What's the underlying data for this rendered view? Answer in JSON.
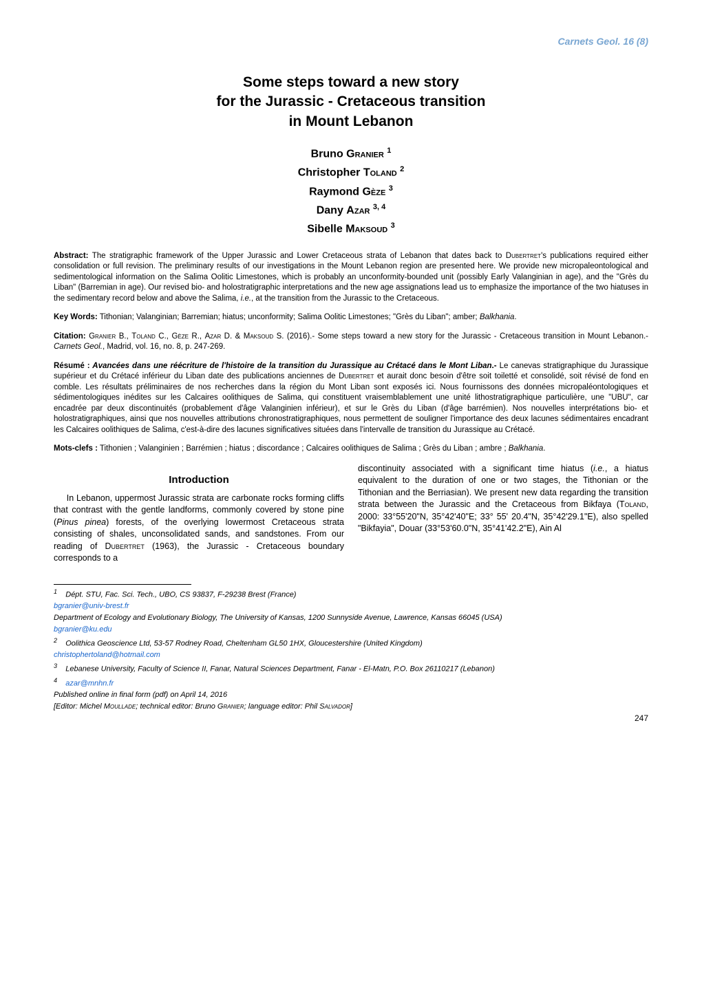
{
  "running_header": {
    "journal": "Carnets Geol.",
    "vol_issue": "16 (8)"
  },
  "title_lines": [
    "Some steps toward a new story",
    "for the Jurassic - Cretaceous transition",
    "in Mount Lebanon"
  ],
  "authors": [
    {
      "given": "Bruno",
      "surname": "Granier",
      "sup": "1"
    },
    {
      "given": "Christopher",
      "surname": "Toland",
      "sup": "2"
    },
    {
      "given": "Raymond",
      "surname": "Gèze",
      "sup": "3"
    },
    {
      "given": "Dany",
      "surname": "Azar",
      "sup": "3, 4"
    },
    {
      "given": "Sibelle",
      "surname": "Maksoud",
      "sup": "3"
    }
  ],
  "abstract": {
    "label": "Abstract:",
    "prefix": " The stratigraphic framework of the Upper Jurassic and Lower Cretaceous strata of Lebanon that dates back to ",
    "sc1": "Dubertret",
    "mid": "'s publications required either consolidation or full revision. The preliminary results of our investigations in the Mount Lebanon region are presented here. We provide new micropaleontological and sedimentological information on the Salima Oolitic Limestones, which is probably an unconformity-bounded unit (possibly Early Valanginian in age), and the \"Grès du Liban\" (Barremian in age). Our revised bio- and holostratigraphic interpretations and the new age assignations lead us to emphasize the importance of the two hiatuses in the sedimentary record below and above the Salima, ",
    "ie": "i.e.",
    "suffix": ", at the transition from the Jurassic to the Cretaceous."
  },
  "keywords": {
    "label": "Key Words:",
    "prefix": " Tithonian; Valanginian; Barremian; hiatus; unconformity; Salima Oolitic Limestones; \"Grès du Liban\"; amber; ",
    "ital": "Balkhania",
    "suffix": "."
  },
  "citation": {
    "label": "Citation:",
    "prefix": " ",
    "sc1": "Granier",
    "t1": " B., ",
    "sc2": "Toland",
    "t2": " C., ",
    "sc3": "Gèze",
    "t3": " R., ",
    "sc4": "Azar",
    "t4": " D. & ",
    "sc5": "Maksoud",
    "t5": " S. (2016).- Some steps toward a new story for the Jurassic - Cretaceous transition in Mount Lebanon.- ",
    "ital": "Carnets Geol.",
    "suffix": ", Madrid, vol. 16, no. 8, p. 247-269."
  },
  "resume": {
    "label": "Résumé :",
    "ital_title": " Avancées dans une réécriture de l'histoire de la transition du Jurassique au Crétacé dans le Mont Liban",
    "sep": ".-",
    "prefix": " Le canevas stratigraphique du Jurassique supérieur et du Crétacé inférieur du Liban date des publications anciennes de ",
    "sc1": "Dubertret",
    "suffix": " et aurait donc besoin d'être soit toiletté et consolidé, soit révisé de fond en comble. Les résultats préliminaires de nos recherches dans la région du Mont Liban sont exposés ici. Nous fournissons des données micropaléontologiques et sédimentologiques inédites sur les Calcaires oolithiques de Salima, qui constituent vraisemblablement une unité lithostratigraphique particulière, une \"UBU\", car encadrée par deux discontinuités (probablement d'âge Valanginien inférieur), et sur le Grès du Liban (d'âge barrémien). Nos nouvelles interprétations bio- et holostratigraphiques, ainsi que nos nouvelles attributions chronostratigraphiques, nous permettent de souligner l'importance des deux lacunes sédimentaires encadrant les Calcaires oolithiques de Salima, c'est-à-dire des lacunes significatives situées dans l'intervalle de transition du Jurassique au Crétacé."
  },
  "motsclefs": {
    "label": "Mots-clefs :",
    "prefix": " Tithonien ; Valanginien ; Barrémien ; hiatus ; discordance ; Calcaires oolithiques de Salima ; Grès du Liban ; ambre ; ",
    "ital": "Balkhania",
    "suffix": "."
  },
  "section_heading": "Introduction",
  "intro_left": {
    "p1a": "In Lebanon, uppermost Jurassic strata are carbonate rocks forming cliffs that contrast with the gentle landforms, commonly covered by stone pine (",
    "p1_ital": "Pinus pinea",
    "p1b": ") forests, of the overlying lowermost Cretaceous strata consisting of shales, unconsolidated sands, and sandstones. From our reading of ",
    "p1_sc": "Dubertret",
    "p1c": " (1963), the Jurassic - Cretaceous boundary corresponds to a"
  },
  "intro_right": {
    "p1a": "discontinuity associated with a significant time hiatus (",
    "p1_ital1": "i.e.",
    "p1b": ", a hiatus equivalent to the duration of one or two stages, the Tithonian or the Tithonian and the Berriasian). We present new data regarding the transition strata between the Jurassic and the Cretaceous from Bikfaya (",
    "p1_sc1": "To",
    "p1_sc2": "land",
    "p1c": ", 2000: 33°55'20\"N, 35°42'40\"E; 33° 55' 20.4\"N, 35°42'29.1\"E), also spelled \"Bikfayia\", Douar (33°53'60.0\"N, 35°41'42.2\"E), Ain Al"
  },
  "footnotes": {
    "f1a": "Dépt. STU, Fac. Sci. Tech., UBO, CS 93837, F-29238 Brest (France)",
    "mail1": "bgranier@univ-brest.fr",
    "f1b": "Department of Ecology and Evolutionary Biology, The University of Kansas, 1200 Sunnyside Avenue, Lawrence, Kansas 66045 (USA)",
    "mail1b": "bgranier@ku.edu",
    "f2": "Oolithica Geoscience Ltd, 53-57 Rodney Road, Cheltenham GL50 1HX, Gloucestershire (United Kingdom)",
    "mail2": "christophertoland@hotmail.com",
    "f3": "Lebanese University, Faculty of Science II, Fanar, Natural Sciences Department, Fanar - El-Matn, P.O. Box 26110217 (Lebanon)",
    "mail4": "azar@mnhn.fr",
    "pub": "Published online in final form (pdf) on April 14, 2016",
    "editor_pre": "[Editor: Michel ",
    "editor_sc1": "Moullade",
    "editor_mid": "; technical editor: Bruno ",
    "editor_sc2": "Granier",
    "editor_mid2": "; language editor: Phil ",
    "editor_sc3": "Salvador",
    "editor_suf": "]"
  },
  "page_number": "247",
  "colors": {
    "header": "#79a6d2",
    "link": "#1a66cc",
    "text": "#000000",
    "bg": "#ffffff"
  },
  "fonts": {
    "body": "Verdana",
    "title_pt": 21,
    "author_pt": 16,
    "abs_pt": 11.5,
    "col_pt": 12.5,
    "fn_pt": 11
  }
}
